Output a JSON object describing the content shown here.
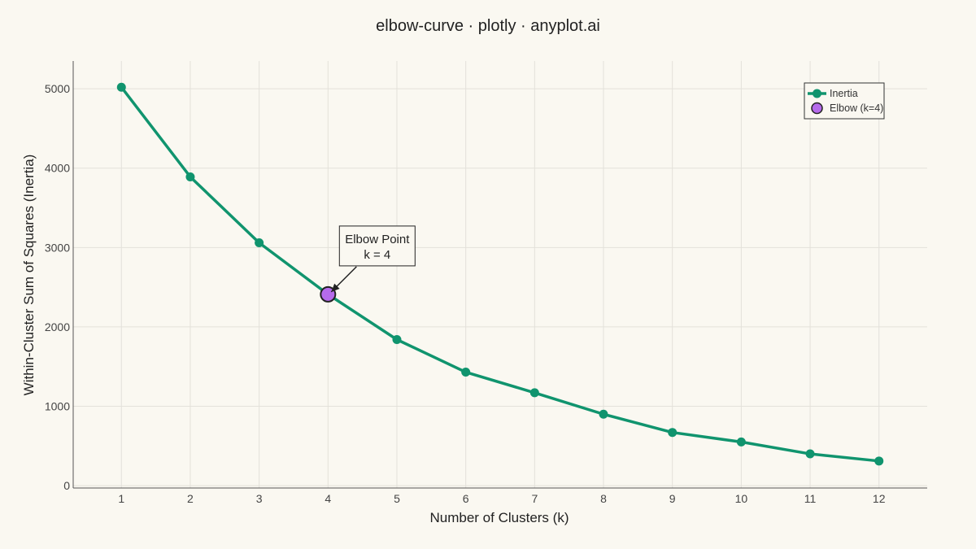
{
  "chart_data": {
    "type": "line",
    "title": "elbow-curve · plotly · anyplot.ai",
    "xlabel": "Number of Clusters (k)",
    "ylabel": "Within-Cluster Sum of Squares (Inertia)",
    "xlim": [
      0.3,
      12.7
    ],
    "ylim": [
      -30,
      5350
    ],
    "xticks": [
      1,
      2,
      3,
      4,
      5,
      6,
      7,
      8,
      9,
      10,
      11,
      12
    ],
    "yticks": [
      0,
      1000,
      2000,
      3000,
      4000,
      5000
    ],
    "grid": true,
    "legend_position": "top-right",
    "series": [
      {
        "name": "Inertia",
        "color": "#10946E",
        "x": [
          1,
          2,
          3,
          4,
          5,
          6,
          7,
          8,
          9,
          10,
          11,
          12
        ],
        "y": [
          5020,
          3890,
          3060,
          2410,
          1840,
          1430,
          1170,
          900,
          670,
          550,
          400,
          310
        ]
      },
      {
        "name": "Elbow (k=4)",
        "color": "#B56BEB",
        "x": [
          4
        ],
        "y": [
          2410
        ]
      }
    ],
    "annotation": {
      "lines": [
        "Elbow Point",
        "k = 4"
      ],
      "x": 4,
      "y": 2410
    }
  }
}
